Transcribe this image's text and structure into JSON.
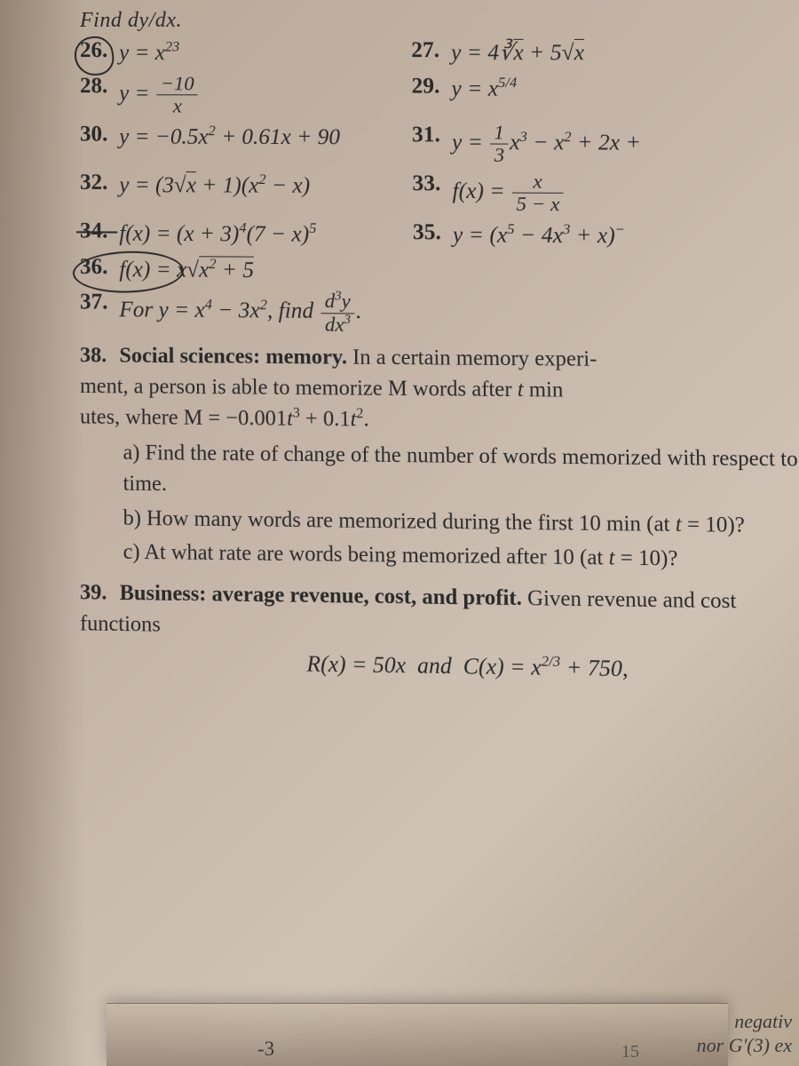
{
  "header": {
    "text": "Find dy/dx."
  },
  "problems": {
    "p26": {
      "num": "26.",
      "expr_html": "y = x<sup>23</sup>"
    },
    "p27": {
      "num": "27.",
      "expr_html": "y = 4∛<span class='overline'>x</span> + 5√<span class='overline'>x</span>"
    },
    "p28": {
      "num": "28.",
      "expr_html": "y = <span class='frac'><span class='top'>−10</span><span class='bot'>x</span></span>"
    },
    "p29": {
      "num": "29.",
      "expr_html": "y = x<sup>5/4</sup>"
    },
    "p30": {
      "num": "30.",
      "expr_html": "y = −0.5x<sup>2</sup> + 0.61x + 90"
    },
    "p31": {
      "num": "31.",
      "expr_html": "y = <span class='frac'><span class='top'>1</span><span class='bot'>3</span></span>x<sup>3</sup> − x<sup>2</sup> + 2x + "
    },
    "p32": {
      "num": "32.",
      "expr_html": "y = (3√<span class='overline'>x</span> + 1)(x<sup>2</sup> − x)"
    },
    "p33": {
      "num": "33.",
      "expr_html": "f(x) = <span class='frac'><span class='top'>x</span><span class='bot'>5 − x</span></span>"
    },
    "p34": {
      "num": "34.",
      "expr_html": "f(x) = (x + 3)<sup>4</sup>(7 − x)<sup>5</sup>"
    },
    "p35": {
      "num": "35.",
      "expr_html": "y = (x<sup>5</sup> − 4x<sup>3</sup> + x)<sup>−</sup>"
    },
    "p36": {
      "num": "36.",
      "expr_html": "f(x) = x√<span class='overline'>x<sup>2</sup> + 5</span>"
    },
    "p37": {
      "num": "37.",
      "expr_html": "For y = x<sup>4</sup> − 3x<sup>2</sup>, find <span class='frac'><span class='top'>d<sup>3</sup>y</span><span class='bot'>dx<sup>3</sup></span></span>."
    },
    "p38": {
      "num": "38.",
      "intro_html": "<span class='bold'>Social sciences: memory.</span> In a certain memory experi-<br>ment, a person is able to memorize M words after <i>t</i> min<br>utes, where M = −0.001<i>t</i><sup>3</sup> + 0.1<i>t</i><sup>2</sup>.",
      "a": "a) Find the rate of change of the number of words memorized with respect to time.",
      "b": "b) How many words are memorized during the first 10 min (at <i>t</i> = 10)?",
      "c": "c) At what rate are words being memorized after 10 (at <i>t</i> = 10)?"
    },
    "p39": {
      "num": "39.",
      "intro_html": "<span class='bold'>Business: average revenue, cost, and profit.</span> Given revenue and cost functions",
      "eq_html": "R(x) = 50x&nbsp;&nbsp;and&nbsp;&nbsp;C(x) = x<sup>2/3</sup> + 750,"
    }
  },
  "footer": {
    "right1": "negativ",
    "right2": "nor G'(3) ex",
    "left_num": "-3",
    "mid_num": "15"
  },
  "colors": {
    "text": "#2a2a2a",
    "bg_grad_a": "#b8a898",
    "bg_grad_b": "#cfc2b5"
  }
}
